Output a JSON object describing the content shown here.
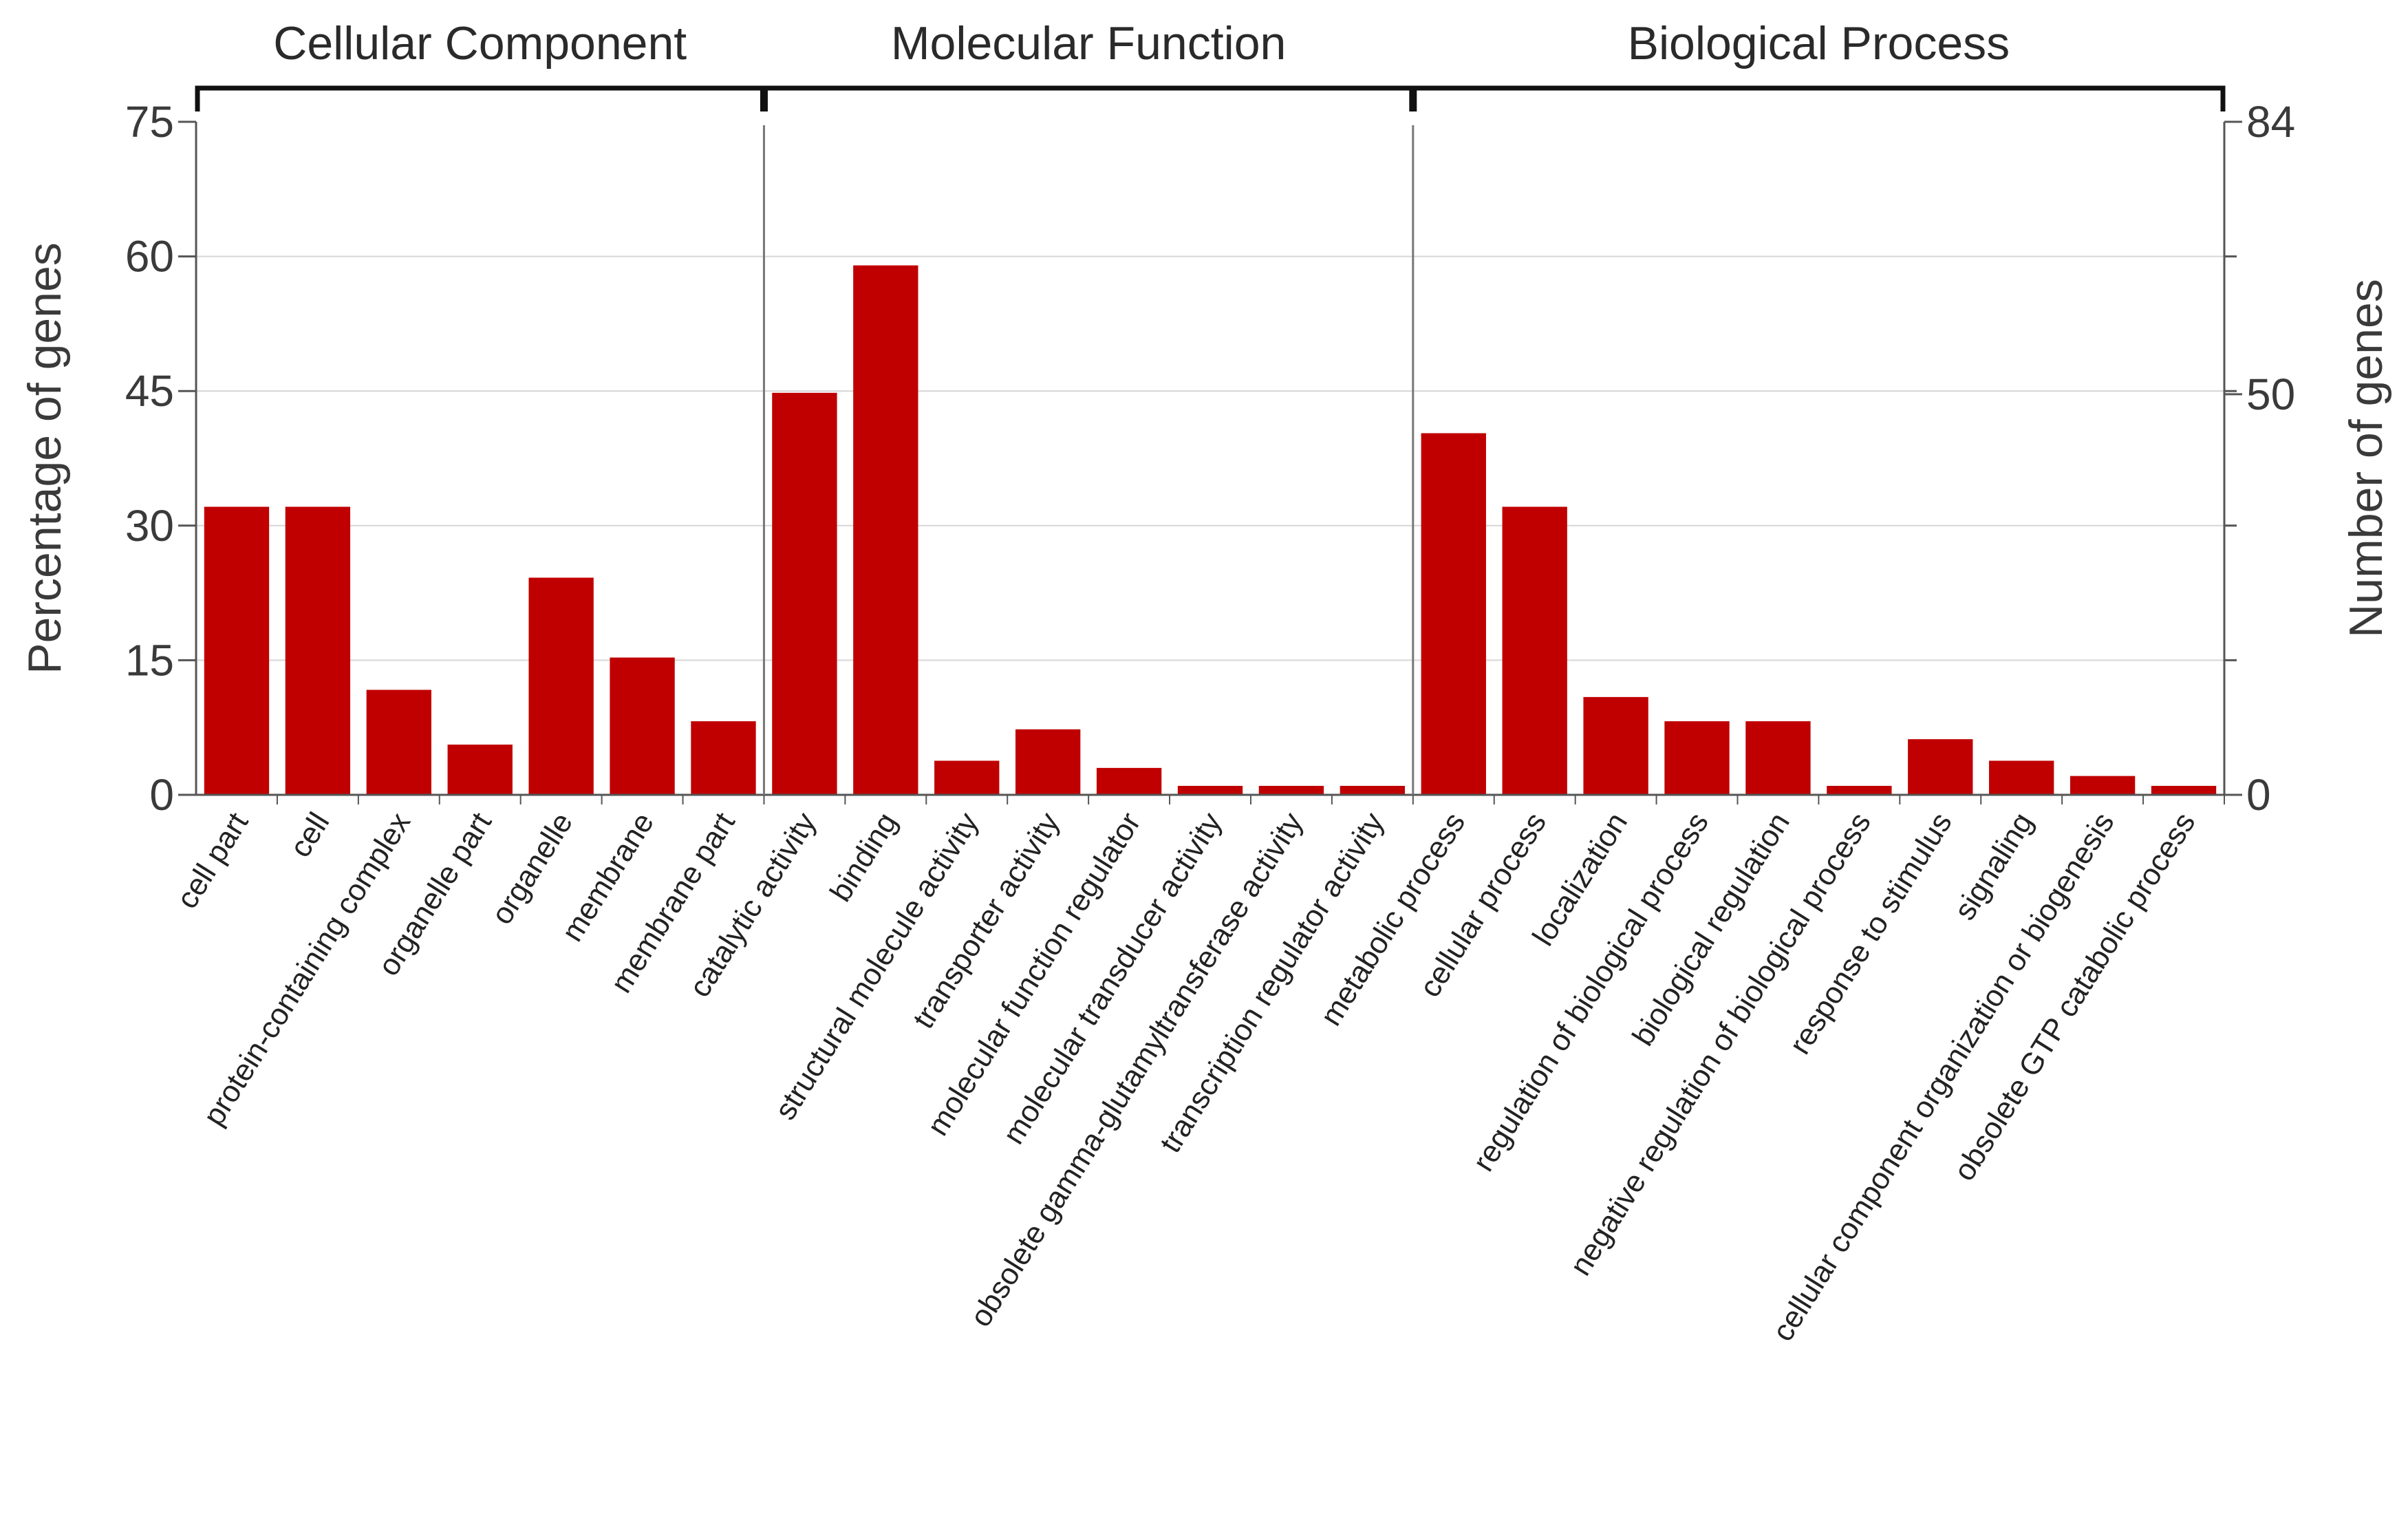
{
  "chart_data": {
    "type": "bar",
    "ylabel_left": "Percentage of genes",
    "ylabel_right": "Number of genes",
    "left_axis": {
      "ylim": [
        0,
        75
      ],
      "ticks": [
        "0",
        "15",
        "30",
        "45",
        "60",
        "75"
      ]
    },
    "right_axis": {
      "ylim": [
        0,
        84
      ],
      "ticks": [
        "0",
        "50",
        "84"
      ]
    },
    "grid": true,
    "bar_color": "#c00000",
    "groups": [
      {
        "name": "Cellular Component",
        "start": 0,
        "end": 6
      },
      {
        "name": "Molecular Function",
        "start": 7,
        "end": 14
      },
      {
        "name": "Biological Process",
        "start": 15,
        "end": 24
      }
    ],
    "categories": [
      "cell part",
      "cell",
      "protein-containing complex",
      "organelle part",
      "organelle",
      "membrane",
      "membrane part",
      "catalytic activity",
      "binding",
      "structural molecule activity",
      "transporter activity",
      "molecular function regulator",
      "molecular transducer activity",
      "obsolete gamma-glutamyltransferase activity",
      "transcription regulator activity",
      "metabolic process",
      "cellular process",
      "localization",
      "regulation of biological process",
      "biological regulation",
      "negative regulation of biological process",
      "response to stimulus",
      "signaling",
      "cellular component organization or biogenesis",
      "obsolete GTP catabolic process"
    ],
    "values": [
      32.1,
      32.1,
      11.7,
      5.6,
      24.2,
      15.3,
      8.2,
      44.8,
      59.0,
      3.8,
      7.3,
      3.0,
      1.0,
      1.0,
      1.0,
      40.3,
      32.1,
      10.9,
      8.2,
      8.2,
      1.0,
      6.2,
      3.8,
      2.1,
      1.0
    ]
  }
}
